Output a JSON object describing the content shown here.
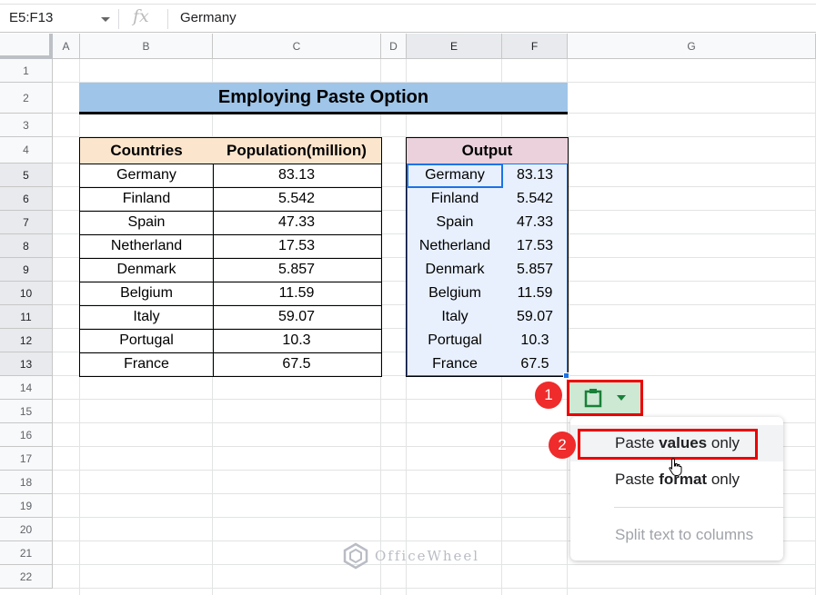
{
  "formula_bar": {
    "name_box": "E5:F13",
    "fx_label": "fx",
    "value": "Germany"
  },
  "columns": [
    "A",
    "B",
    "C",
    "D",
    "E",
    "F",
    "G"
  ],
  "selected_columns": [
    "E",
    "F"
  ],
  "rows": [
    "1",
    "2",
    "3",
    "4",
    "5",
    "6",
    "7",
    "8",
    "9",
    "10",
    "11",
    "12",
    "13",
    "14",
    "15",
    "16",
    "17",
    "18",
    "19",
    "20",
    "21",
    "22"
  ],
  "selected_rows": [
    "5",
    "6",
    "7",
    "8",
    "9",
    "10",
    "11",
    "12",
    "13"
  ],
  "title": "Employing Paste Option",
  "source_table": {
    "headers": [
      "Countries",
      "Population(million)"
    ],
    "header_color": "#fce5cd",
    "rows": [
      [
        "Germany",
        "83.13"
      ],
      [
        "Finland",
        "5.542"
      ],
      [
        "Spain",
        "47.33"
      ],
      [
        "Netherland",
        "17.53"
      ],
      [
        "Denmark",
        "5.857"
      ],
      [
        "Belgium",
        "11.59"
      ],
      [
        "Italy",
        "59.07"
      ],
      [
        "Portugal",
        "10.3"
      ],
      [
        "France",
        "67.5"
      ]
    ]
  },
  "output_table": {
    "header": "Output",
    "header_color": "#ead1dc",
    "rows": [
      [
        "Germany",
        "83.13"
      ],
      [
        "Finland",
        "5.542"
      ],
      [
        "Spain",
        "47.33"
      ],
      [
        "Netherland",
        "17.53"
      ],
      [
        "Denmark",
        "5.857"
      ],
      [
        "Belgium",
        "11.59"
      ],
      [
        "Italy",
        "59.07"
      ],
      [
        "Portugal",
        "10.3"
      ],
      [
        "France",
        "67.5"
      ]
    ]
  },
  "paste_button": {
    "icon": "clipboard-icon",
    "dropdown_icon": "caret-down-icon"
  },
  "badges": [
    "1",
    "2"
  ],
  "menu": {
    "items": [
      {
        "pre": "Paste ",
        "bold": "values",
        "post": " only"
      },
      {
        "pre": "Paste ",
        "bold": "format",
        "post": " only"
      },
      {
        "pre": "Split text to columns",
        "bold": "",
        "post": ""
      }
    ]
  },
  "watermark": "OfficeWheel",
  "accent_color": "#1a73e8"
}
